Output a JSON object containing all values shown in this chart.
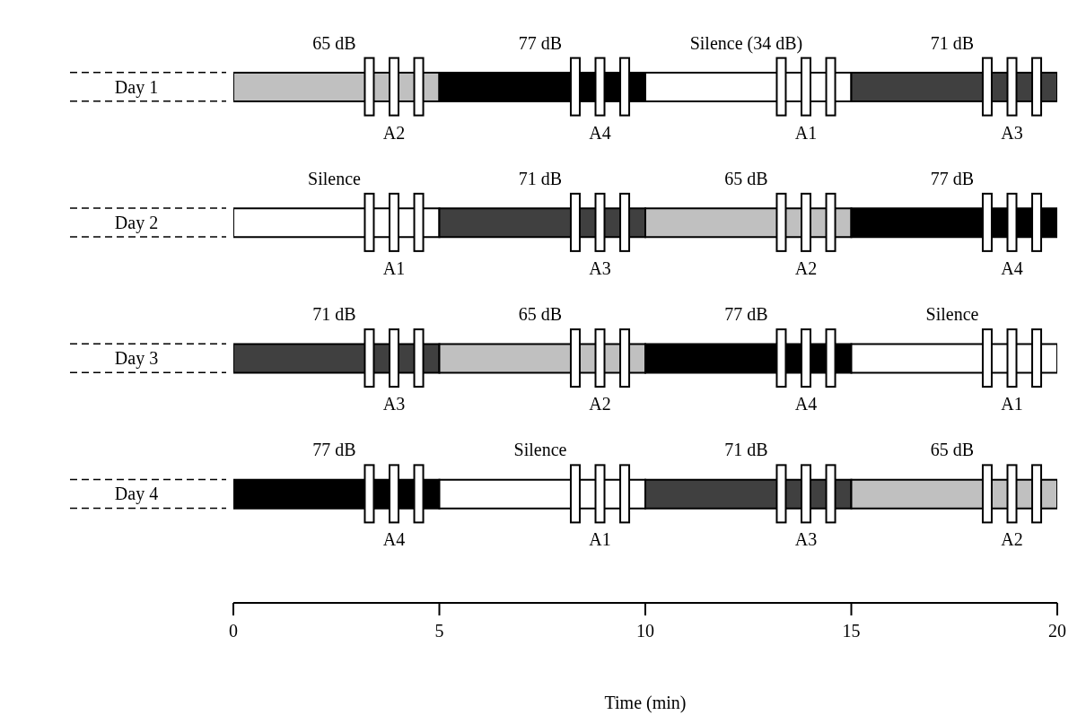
{
  "chart_data": {
    "type": "bar",
    "orientation": "horizontal",
    "stacked": true,
    "xlabel": "Time (min)",
    "categories": [
      "Day 1",
      "Day 2",
      "Day 3",
      "Day 4"
    ],
    "xlim": [
      0,
      20
    ],
    "xticks": [
      0,
      5,
      10,
      15,
      20
    ],
    "series": [
      {
        "values": [
          5,
          5,
          5,
          5
        ],
        "colors": [
          "#c0c0c0",
          "#ffffff",
          "#404040",
          "#000000"
        ]
      },
      {
        "values": [
          5,
          5,
          5,
          5
        ],
        "colors": [
          "#000000",
          "#404040",
          "#c0c0c0",
          "#ffffff"
        ]
      },
      {
        "values": [
          5,
          5,
          5,
          5
        ],
        "colors": [
          "#ffffff",
          "#c0c0c0",
          "#000000",
          "#404040"
        ]
      },
      {
        "values": [
          5,
          5,
          5,
          5
        ],
        "colors": [
          "#404040",
          "#000000",
          "#ffffff",
          "#c0c0c0"
        ]
      }
    ],
    "annotations": [
      "65 dB",
      "A2",
      "77 dB",
      "A4",
      "Silence (34 dB)",
      "A1",
      "71 dB",
      "A3",
      "Silence",
      "A1",
      "71 dB",
      "A3",
      "65 dB",
      "A2",
      "77 dB",
      "A4",
      "71 dB",
      "A3",
      "65 dB",
      "A2",
      "77 dB",
      "A4",
      "Silence",
      "A1",
      "77 dB",
      "A4",
      "Silence",
      "A1",
      "71 dB",
      "A3",
      "65 dB",
      "A2"
    ]
  }
}
